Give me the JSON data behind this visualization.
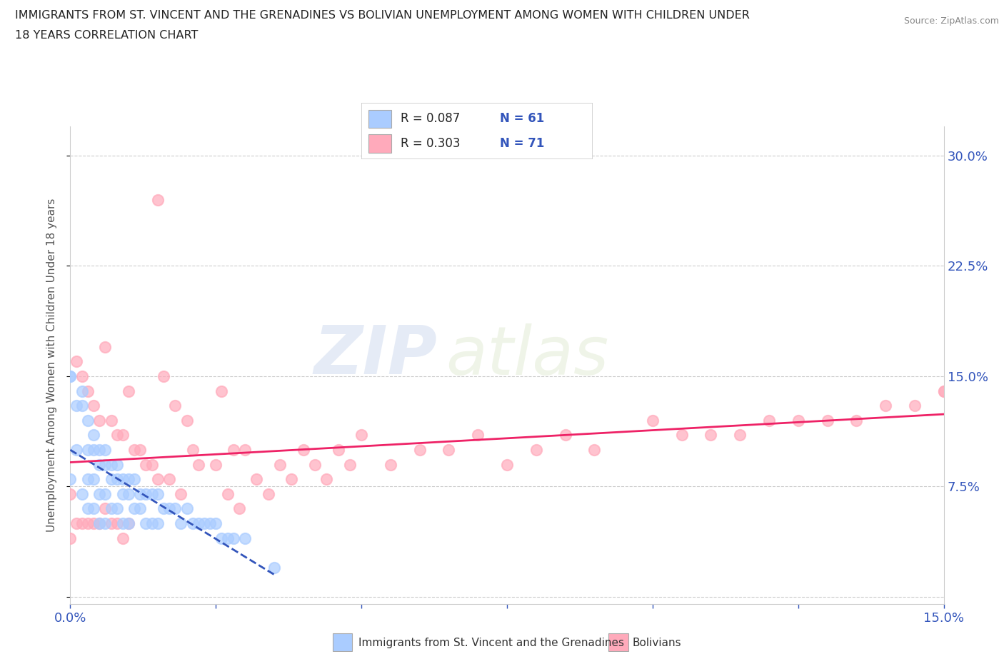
{
  "title_line1": "IMMIGRANTS FROM ST. VINCENT AND THE GRENADINES VS BOLIVIAN UNEMPLOYMENT AMONG WOMEN WITH CHILDREN UNDER",
  "title_line2": "18 YEARS CORRELATION CHART",
  "source": "Source: ZipAtlas.com",
  "ylabel": "Unemployment Among Women with Children Under 18 years",
  "xlim": [
    0.0,
    0.15
  ],
  "ylim": [
    -0.005,
    0.32
  ],
  "right_ytick_positions": [
    0.075,
    0.15,
    0.225,
    0.3
  ],
  "right_ytick_labels": [
    "7.5%",
    "15.0%",
    "22.5%",
    "30.0%"
  ],
  "blue_color": "#aaccff",
  "pink_color": "#ffaabb",
  "blue_line_color": "#3355bb",
  "pink_line_color": "#ee2266",
  "watermark_zip": "ZIP",
  "watermark_atlas": "atlas",
  "blue_scatter_x": [
    0.0,
    0.0,
    0.0,
    0.001,
    0.001,
    0.002,
    0.002,
    0.002,
    0.003,
    0.003,
    0.003,
    0.003,
    0.004,
    0.004,
    0.004,
    0.004,
    0.005,
    0.005,
    0.005,
    0.005,
    0.006,
    0.006,
    0.006,
    0.006,
    0.007,
    0.007,
    0.007,
    0.008,
    0.008,
    0.008,
    0.009,
    0.009,
    0.009,
    0.01,
    0.01,
    0.01,
    0.011,
    0.011,
    0.012,
    0.012,
    0.013,
    0.013,
    0.014,
    0.014,
    0.015,
    0.015,
    0.016,
    0.017,
    0.018,
    0.019,
    0.02,
    0.021,
    0.022,
    0.023,
    0.024,
    0.025,
    0.026,
    0.027,
    0.028,
    0.03,
    0.035
  ],
  "blue_scatter_y": [
    0.15,
    0.15,
    0.08,
    0.13,
    0.1,
    0.14,
    0.13,
    0.07,
    0.12,
    0.1,
    0.08,
    0.06,
    0.11,
    0.1,
    0.08,
    0.06,
    0.1,
    0.09,
    0.07,
    0.05,
    0.1,
    0.09,
    0.07,
    0.05,
    0.09,
    0.08,
    0.06,
    0.09,
    0.08,
    0.06,
    0.08,
    0.07,
    0.05,
    0.08,
    0.07,
    0.05,
    0.08,
    0.06,
    0.07,
    0.06,
    0.07,
    0.05,
    0.07,
    0.05,
    0.07,
    0.05,
    0.06,
    0.06,
    0.06,
    0.05,
    0.06,
    0.05,
    0.05,
    0.05,
    0.05,
    0.05,
    0.04,
    0.04,
    0.04,
    0.04,
    0.02
  ],
  "pink_scatter_x": [
    0.0,
    0.0,
    0.001,
    0.001,
    0.002,
    0.002,
    0.003,
    0.003,
    0.004,
    0.004,
    0.005,
    0.005,
    0.006,
    0.006,
    0.007,
    0.007,
    0.008,
    0.008,
    0.009,
    0.009,
    0.01,
    0.01,
    0.011,
    0.012,
    0.013,
    0.014,
    0.015,
    0.015,
    0.016,
    0.017,
    0.018,
    0.019,
    0.02,
    0.021,
    0.022,
    0.025,
    0.026,
    0.027,
    0.028,
    0.029,
    0.03,
    0.032,
    0.034,
    0.036,
    0.038,
    0.04,
    0.042,
    0.044,
    0.046,
    0.048,
    0.05,
    0.055,
    0.06,
    0.065,
    0.07,
    0.075,
    0.08,
    0.085,
    0.09,
    0.1,
    0.105,
    0.11,
    0.115,
    0.12,
    0.125,
    0.13,
    0.135,
    0.14,
    0.145,
    0.15,
    0.15
  ],
  "pink_scatter_y": [
    0.07,
    0.04,
    0.16,
    0.05,
    0.15,
    0.05,
    0.14,
    0.05,
    0.13,
    0.05,
    0.12,
    0.05,
    0.17,
    0.06,
    0.12,
    0.05,
    0.11,
    0.05,
    0.11,
    0.04,
    0.14,
    0.05,
    0.1,
    0.1,
    0.09,
    0.09,
    0.27,
    0.08,
    0.15,
    0.08,
    0.13,
    0.07,
    0.12,
    0.1,
    0.09,
    0.09,
    0.14,
    0.07,
    0.1,
    0.06,
    0.1,
    0.08,
    0.07,
    0.09,
    0.08,
    0.1,
    0.09,
    0.08,
    0.1,
    0.09,
    0.11,
    0.09,
    0.1,
    0.1,
    0.11,
    0.09,
    0.1,
    0.11,
    0.1,
    0.12,
    0.11,
    0.11,
    0.11,
    0.12,
    0.12,
    0.12,
    0.12,
    0.13,
    0.13,
    0.14,
    0.14
  ]
}
